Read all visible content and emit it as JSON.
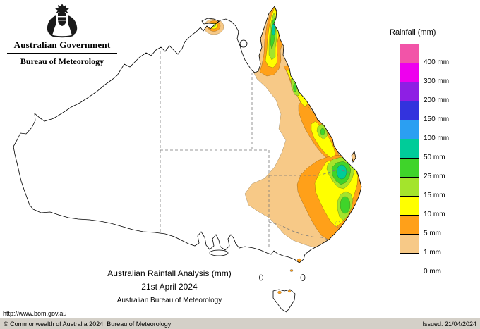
{
  "header": {
    "gov_title": "Australian Government",
    "bureau_title": "Bureau of Meteorology"
  },
  "legend": {
    "title": "Rainfall (mm)",
    "entries": [
      {
        "key": "400",
        "label": "400 mm",
        "color": "#f254a8"
      },
      {
        "key": "300",
        "label": "300 mm",
        "color": "#ee00ee"
      },
      {
        "key": "200",
        "label": "200 mm",
        "color": "#8e1fe4"
      },
      {
        "key": "150",
        "label": "150 mm",
        "color": "#3333dd"
      },
      {
        "key": "100",
        "label": "100 mm",
        "color": "#2b9ff2"
      },
      {
        "key": "50",
        "label": "50 mm",
        "color": "#00cc99"
      },
      {
        "key": "25",
        "label": "25 mm",
        "color": "#3fd42a"
      },
      {
        "key": "15",
        "label": "15 mm",
        "color": "#a4e42c"
      },
      {
        "key": "10",
        "label": "10 mm",
        "color": "#ffff00"
      },
      {
        "key": "5",
        "label": "5 mm",
        "color": "#ffa019"
      },
      {
        "key": "1",
        "label": "1 mm",
        "color": "#f7c987"
      },
      {
        "key": "0",
        "label": "0 mm",
        "color": "#ffffff"
      }
    ]
  },
  "caption": {
    "title": "Australian Rainfall Analysis (mm)",
    "date": "21st April 2024",
    "organisation": "Australian Bureau of Meteorology"
  },
  "footer": {
    "url": "http://www.bom.gov.au",
    "copyright": "© Commonwealth of Australia 2024, Bureau of Meteorology",
    "issued": "Issued: 21/04/2024"
  }
}
